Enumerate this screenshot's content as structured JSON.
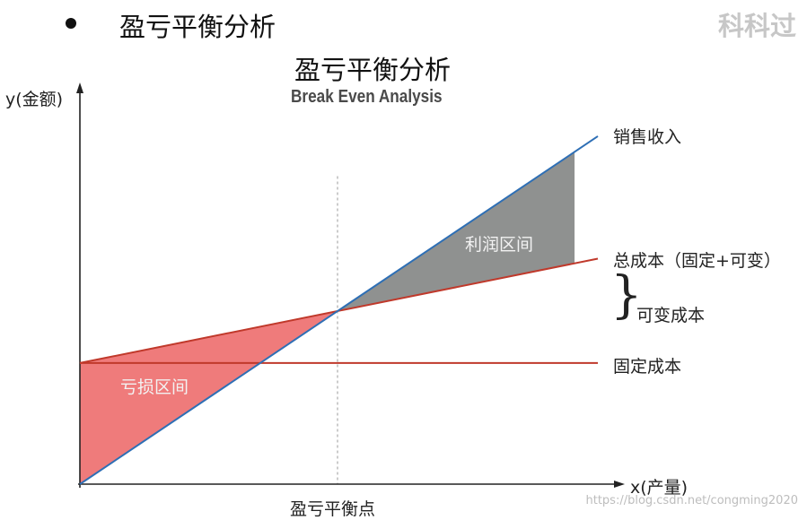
{
  "slide": {
    "title": "盈亏平衡分析",
    "brand": "科科过"
  },
  "chart": {
    "title": "盈亏平衡分析",
    "subtitle": "Break Even Analysis",
    "y_axis_label": "y(金额)",
    "x_axis_label": "x(产量)",
    "break_even_label": "盈亏平衡点",
    "loss_region_label": "亏损区间",
    "profit_region_label": "利润区间",
    "variable_cost_brace": "}"
  },
  "chart_data": {
    "type": "line",
    "x": [
      0,
      1,
      2
    ],
    "series": [
      {
        "name": "销售收入",
        "values": [
          0,
          1,
          2
        ]
      },
      {
        "name": "总成本（固定+可变）",
        "values": [
          0.7,
          1,
          1.3
        ]
      },
      {
        "name": "固定成本",
        "values": [
          0.7,
          0.7,
          0.7
        ]
      }
    ],
    "annotations": [
      "可变成本",
      "亏损区间",
      "利润区间",
      "盈亏平衡点"
    ],
    "xlabel": "x(产量)",
    "ylabel": "y(金额)",
    "title": "盈亏平衡分析",
    "subtitle": "Break Even Analysis"
  },
  "colors": {
    "revenue": "#2e6fb5",
    "total_cost": "#c0392b",
    "fixed_cost": "#c0392b",
    "loss_fill": "#ef7b7b",
    "profit_fill": "#8f9190",
    "axis": "#222222",
    "guide": "#999999"
  },
  "watermark": "https://blog.csdn.net/congming2020"
}
